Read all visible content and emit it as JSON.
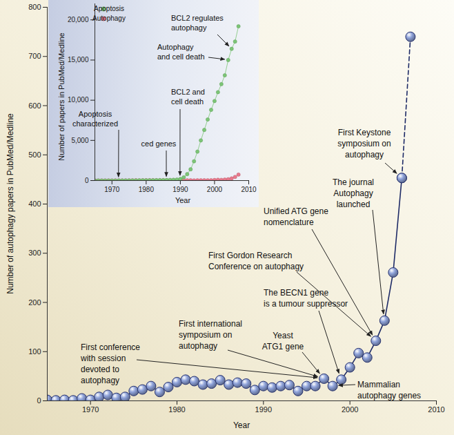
{
  "chart_data": [
    {
      "type": "line",
      "xlabel": "Year",
      "ylabel": "Number of autophagy papers in PubMed/Medline",
      "x": [
        1965,
        1966,
        1967,
        1968,
        1969,
        1970,
        1971,
        1972,
        1973,
        1974,
        1975,
        1976,
        1977,
        1978,
        1979,
        1980,
        1981,
        1982,
        1983,
        1984,
        1985,
        1986,
        1987,
        1988,
        1989,
        1990,
        1991,
        1992,
        1993,
        1994,
        1995,
        1996,
        1997,
        1998,
        1999,
        2000,
        2001,
        2002,
        2003,
        2004,
        2005,
        2006,
        2007
      ],
      "xlim": [
        1965,
        2010
      ],
      "xticks": [
        1970,
        1980,
        1990,
        2000,
        2010
      ],
      "ylim": [
        0,
        800
      ],
      "yticks": [
        0,
        100,
        200,
        300,
        400,
        500,
        600,
        700,
        800
      ],
      "grid": false,
      "series": [
        {
          "color": "#8fa3da",
          "marker": "circle",
          "line_style": "solid",
          "values": [
            2,
            1,
            2,
            1,
            5,
            2,
            8,
            12,
            6,
            8,
            20,
            23,
            30,
            18,
            28,
            38,
            43,
            40,
            33,
            35,
            42,
            33,
            37,
            35,
            22,
            30,
            27,
            30,
            32,
            20,
            30,
            30,
            45,
            30,
            43,
            68,
            97,
            88,
            122,
            163,
            261,
            453,
            null
          ]
        },
        {
          "color": "#8fa3da",
          "marker": "circle",
          "line_style": "dashed",
          "values": [
            null,
            null,
            null,
            null,
            null,
            null,
            null,
            null,
            null,
            null,
            null,
            null,
            null,
            null,
            null,
            null,
            null,
            null,
            null,
            null,
            null,
            null,
            null,
            null,
            null,
            null,
            null,
            null,
            null,
            null,
            null,
            null,
            null,
            null,
            null,
            null,
            null,
            null,
            null,
            null,
            null,
            453,
            740
          ]
        }
      ],
      "annotations": [
        {
          "text": "First conference\nwith session\ndevoted to\nautophagy",
          "x": 1997
        },
        {
          "text": "First international\nsymposium on\nautophagy",
          "x": 1997
        },
        {
          "text": "Yeast\nATG1 gene",
          "x": 1997
        },
        {
          "text": "The BECN1 gene\nis a tumour suppressor",
          "x": 1999
        },
        {
          "text": "First Gordon Research\nConference on autophagy",
          "x": 2003
        },
        {
          "text": "Unified ATG gene\nnomenclature",
          "x": 2003
        },
        {
          "text": "The journal\nAutophagy\nlaunched",
          "x": 2004
        },
        {
          "text": "First Keystone\nsymposium on\nautophagy",
          "x": 2006
        },
        {
          "text": "Mammalian\nautophagy genes",
          "x": 1998
        }
      ]
    },
    {
      "type": "line",
      "xlabel": "Year",
      "ylabel": "Number of papers in PubMed/Medline",
      "x": [
        1965,
        1966,
        1967,
        1968,
        1969,
        1970,
        1971,
        1972,
        1973,
        1974,
        1975,
        1976,
        1977,
        1978,
        1979,
        1980,
        1981,
        1982,
        1983,
        1984,
        1985,
        1986,
        1987,
        1988,
        1989,
        1990,
        1991,
        1992,
        1993,
        1994,
        1995,
        1996,
        1997,
        1998,
        1999,
        2000,
        2001,
        2002,
        2003,
        2004,
        2005,
        2006,
        2007
      ],
      "xlim": [
        1965,
        2010
      ],
      "xticks": [
        1970,
        1980,
        1990,
        2000,
        2010
      ],
      "ylim": [
        0,
        22000
      ],
      "yticks": [
        0,
        {
          "value": 5000,
          "label": "5,000"
        },
        {
          "value": 10000,
          "label": "10,000"
        },
        {
          "value": 15000,
          "label": "15,000"
        },
        {
          "value": 20000,
          "label": "20,000"
        }
      ],
      "grid": false,
      "legend": "top-left",
      "series": [
        {
          "name": "Apoptosis",
          "color": "#7cc576",
          "marker": "circle",
          "line_style": "solid",
          "values": [
            0,
            0,
            0,
            0,
            0,
            0,
            0,
            5,
            8,
            12,
            15,
            18,
            20,
            25,
            30,
            35,
            40,
            45,
            50,
            55,
            60,
            70,
            80,
            100,
            130,
            200,
            400,
            800,
            1400,
            2400,
            3600,
            5000,
            6300,
            7600,
            8800,
            9900,
            11000,
            12000,
            13100,
            15000,
            16400,
            17300,
            19200
          ]
        },
        {
          "name": "Autophagy",
          "color": "#e8798c",
          "marker": "circle",
          "line_style": "solid",
          "values": [
            2,
            1,
            2,
            1,
            5,
            2,
            8,
            12,
            6,
            8,
            20,
            23,
            30,
            18,
            28,
            38,
            43,
            40,
            33,
            35,
            42,
            33,
            37,
            35,
            22,
            30,
            27,
            30,
            32,
            20,
            30,
            30,
            45,
            30,
            43,
            68,
            97,
            88,
            122,
            163,
            261,
            453,
            740
          ]
        }
      ],
      "annotations": [
        {
          "text": "Apoptosis\ncharacterized",
          "x": 1972
        },
        {
          "text": "ced genes",
          "x": 1986
        },
        {
          "text": "BCL2 and\ncell death",
          "x": 1990
        },
        {
          "text": "Autophagy\nand cell death",
          "x": 2004
        },
        {
          "text": "BCL2 regulates\nautophagy",
          "x": 2005
        }
      ]
    }
  ]
}
